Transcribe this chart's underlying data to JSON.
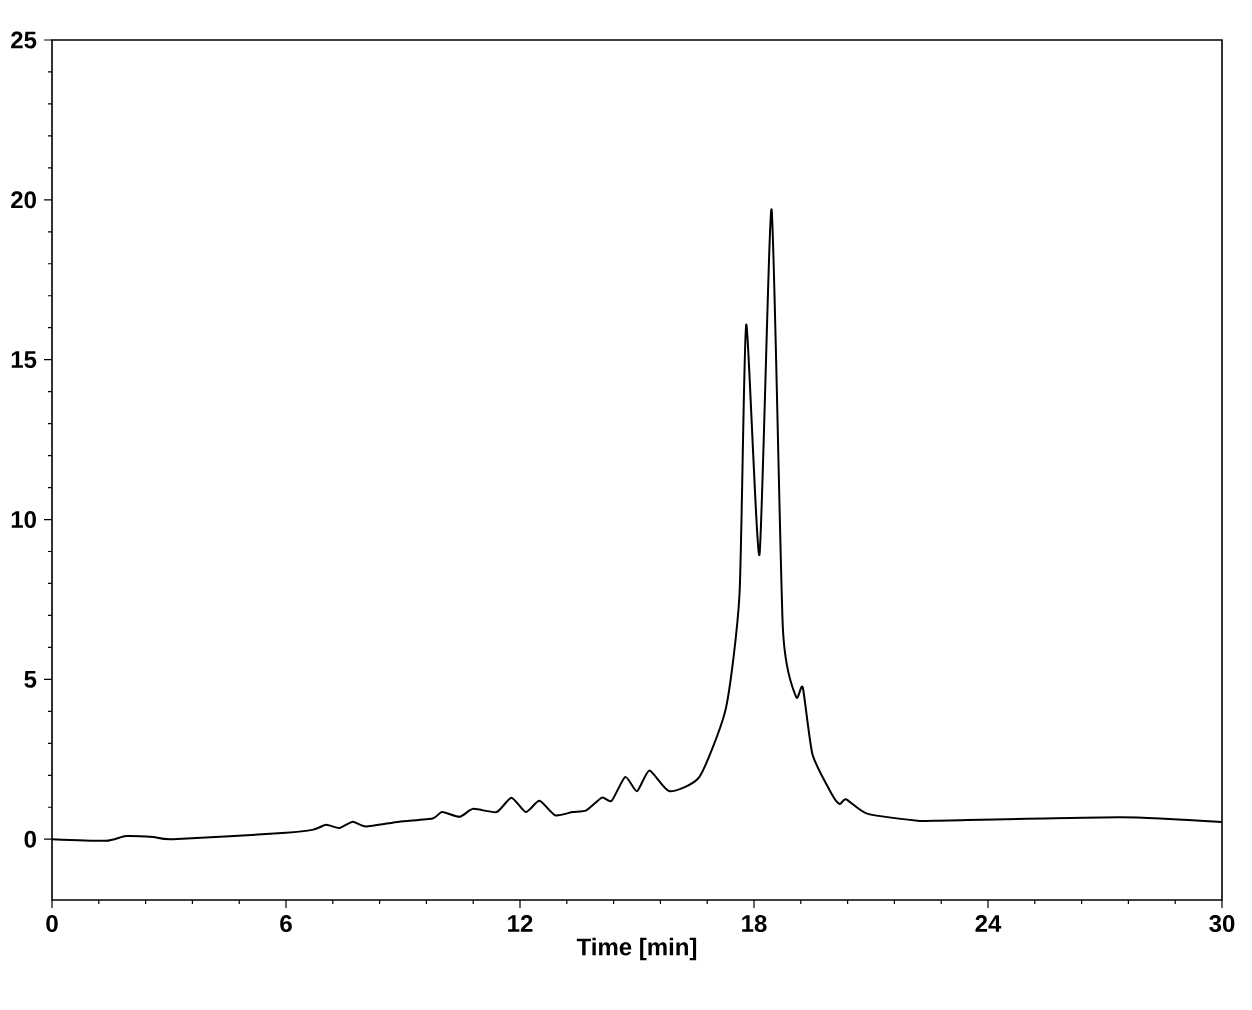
{
  "chart_data": {
    "type": "line",
    "xlabel": "Time [min]",
    "xlim": [
      0,
      30
    ],
    "xticks": [
      0,
      6,
      12,
      18,
      24,
      30
    ],
    "ylim": [
      -1.9,
      25
    ],
    "yticks": [
      0,
      5,
      10,
      15,
      20,
      25
    ],
    "color": "#000000",
    "grid": false,
    "marker": "none",
    "line_style": "solid",
    "x": [
      0,
      1.38,
      1.9,
      2.6,
      3.1,
      6,
      6.7,
      7.03,
      7.37,
      7.71,
      8.05,
      8.9,
      9.76,
      10.0,
      10.45,
      10.8,
      11.4,
      11.78,
      12.15,
      12.5,
      12.9,
      13.35,
      13.7,
      14.1,
      14.35,
      14.7,
      15.0,
      15.32,
      15.83,
      16.6,
      17.28,
      17.63,
      17.8,
      18.14,
      18.45,
      18.74,
      19.08,
      19.25,
      19.5,
      20.0,
      20.2,
      20.36,
      20.9,
      22.2,
      22.6,
      27.4,
      30
    ],
    "values": [
      0,
      -0.05,
      0.1,
      0.07,
      0,
      0.2,
      0.3,
      0.45,
      0.35,
      0.55,
      0.4,
      0.55,
      0.65,
      0.85,
      0.7,
      0.95,
      0.85,
      1.3,
      0.85,
      1.2,
      0.75,
      0.85,
      0.9,
      1.3,
      1.2,
      1.95,
      1.5,
      2.15,
      1.5,
      1.95,
      4.1,
      7.7,
      16.1,
      8.9,
      19.7,
      6.6,
      4.45,
      4.75,
      2.65,
      1.4,
      1.1,
      1.25,
      0.8,
      0.58,
      0.58,
      0.69,
      0.54
    ]
  }
}
